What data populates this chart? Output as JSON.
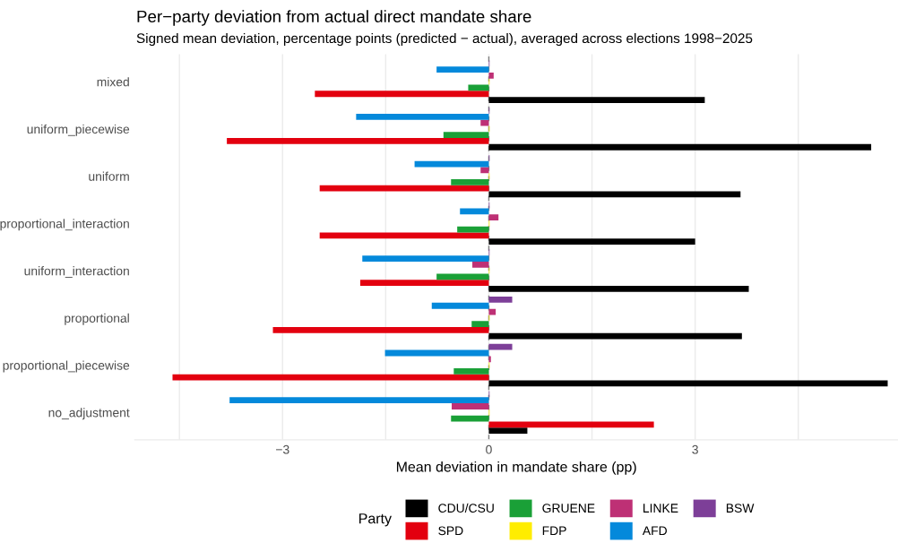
{
  "chart_data": {
    "type": "bar",
    "orientation": "horizontal",
    "title": "Per−party deviation from actual direct mandate share",
    "subtitle": "Signed mean deviation, percentage points (predicted − actual), averaged across elections 1998−2025",
    "xlabel": "Mean deviation in mandate share (pp)",
    "legend_title": "Party",
    "categories": [
      "mixed",
      "uniform_piecewise",
      "uniform",
      "proportional_interaction",
      "uniform_interaction",
      "proportional",
      "proportional_piecewise",
      "no_adjustment"
    ],
    "series": [
      {
        "name": "CDU/CSU",
        "color": "#000000",
        "values": [
          3.14,
          5.56,
          3.66,
          3.0,
          3.78,
          3.68,
          5.8,
          0.56
        ]
      },
      {
        "name": "SPD",
        "color": "#e3000f",
        "values": [
          -2.53,
          -3.81,
          -2.46,
          -2.46,
          -1.87,
          -3.14,
          -4.6,
          2.4
        ]
      },
      {
        "name": "GRUENE",
        "color": "#1aa037",
        "values": [
          -0.3,
          -0.66,
          -0.55,
          -0.46,
          -0.76,
          -0.25,
          -0.51,
          -0.55
        ]
      },
      {
        "name": "FDP",
        "color": "#ffed00",
        "values": [
          0.01,
          0.01,
          0.01,
          0.01,
          0.01,
          0.01,
          0.01,
          0.01
        ]
      },
      {
        "name": "LINKE",
        "color": "#be3075",
        "values": [
          0.07,
          -0.12,
          -0.12,
          0.14,
          -0.24,
          0.1,
          0.03,
          -0.54
        ]
      },
      {
        "name": "AFD",
        "color": "#0489db",
        "values": [
          -0.76,
          -1.93,
          -1.08,
          -0.42,
          -1.84,
          -0.83,
          -1.51,
          -3.77
        ]
      },
      {
        "name": "BSW",
        "color": "#7d3f98",
        "values": [
          0.01,
          0.01,
          0.01,
          0.01,
          0.01,
          0.34,
          0.34,
          0.01
        ]
      }
    ],
    "xlim": [
      -5.15,
      5.95
    ],
    "xticks": [
      {
        "value": -4.5,
        "label": null
      },
      -3,
      {
        "value": -1.5,
        "label": null
      },
      0,
      {
        "value": 1.5,
        "label": null
      },
      3,
      {
        "value": 4.5,
        "label": null
      }
    ],
    "ref_lines": [
      {
        "axis": "x",
        "value": 0,
        "color": "#808080",
        "line_style": "dashed"
      }
    ],
    "grid": "x",
    "legend": "bottom"
  }
}
